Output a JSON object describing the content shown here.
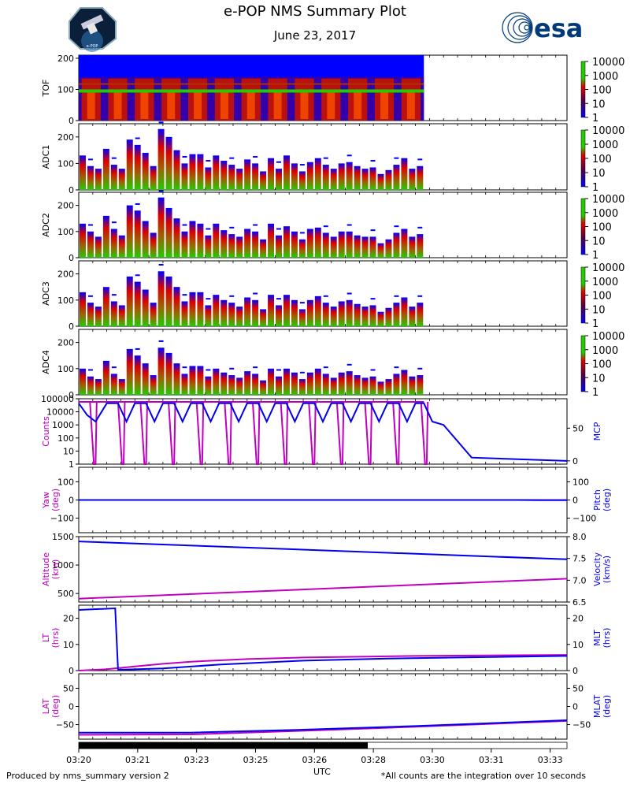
{
  "header": {
    "title": "e-POP NMS Summary Plot",
    "date": "June 23, 2017",
    "esa_logo_text": "esa",
    "mission_badge_text": "e-POP"
  },
  "footer": {
    "left": "Produced by nms_summary version 2",
    "right": "*All counts are the integration over 10 seconds",
    "xlabel": "UTC"
  },
  "colors": {
    "magenta": "#c000c0",
    "blue": "#0000ee",
    "spec_low": "#0000ff",
    "spec_mid": "#dd0000",
    "spec_high": "#22cc00"
  },
  "chart_data": [
    {
      "type": "heatmap",
      "name": "TOF",
      "ylabel": "TOF",
      "ylim": [
        0,
        210
      ],
      "yticks": [
        0,
        100,
        200
      ],
      "colorbar": {
        "ticks": [
          "10000",
          "1000",
          "100",
          "10",
          "1"
        ]
      }
    },
    {
      "type": "heatmap",
      "name": "ADC1",
      "ylabel": "ADC1",
      "ylim": [
        0,
        250
      ],
      "yticks": [
        0,
        100,
        200
      ],
      "colorbar": {
        "ticks": [
          "10000",
          "1000",
          "100",
          "10",
          "1"
        ]
      },
      "bar_heights": [
        130,
        90,
        80,
        155,
        95,
        80,
        190,
        170,
        140,
        90,
        230,
        200,
        150,
        100,
        135,
        135,
        85,
        130,
        110,
        95,
        80,
        115,
        100,
        70,
        120,
        80,
        130,
        100,
        70,
        105,
        120,
        95,
        80,
        100,
        105,
        90,
        80,
        85,
        60,
        75,
        95,
        120,
        80,
        90
      ]
    },
    {
      "type": "heatmap",
      "name": "ADC2",
      "ylabel": "ADC2",
      "ylim": [
        0,
        250
      ],
      "yticks": [
        0,
        100,
        200
      ],
      "colorbar": {
        "ticks": [
          "10000",
          "1000",
          "100",
          "10",
          "1"
        ]
      },
      "bar_heights": [
        130,
        100,
        80,
        160,
        110,
        85,
        200,
        180,
        140,
        95,
        230,
        190,
        150,
        100,
        140,
        130,
        85,
        130,
        105,
        90,
        80,
        110,
        100,
        70,
        130,
        85,
        120,
        100,
        70,
        110,
        115,
        95,
        80,
        100,
        100,
        85,
        80,
        80,
        55,
        70,
        95,
        110,
        80,
        90
      ]
    },
    {
      "type": "heatmap",
      "name": "ADC3",
      "ylabel": "ADC3",
      "ylim": [
        0,
        250
      ],
      "yticks": [
        0,
        100,
        200
      ],
      "colorbar": {
        "ticks": [
          "10000",
          "1000",
          "100",
          "10",
          "1"
        ]
      },
      "bar_heights": [
        130,
        90,
        75,
        150,
        95,
        80,
        190,
        170,
        140,
        90,
        210,
        190,
        150,
        95,
        130,
        130,
        80,
        120,
        100,
        90,
        75,
        110,
        100,
        65,
        120,
        80,
        120,
        100,
        65,
        100,
        115,
        90,
        75,
        95,
        100,
        85,
        75,
        80,
        55,
        70,
        90,
        110,
        75,
        90
      ]
    },
    {
      "type": "heatmap",
      "name": "ADC4",
      "ylabel": "ADC4",
      "ylim": [
        0,
        250
      ],
      "yticks": [
        0,
        100,
        200
      ],
      "colorbar": {
        "ticks": [
          "10000",
          "1000",
          "100",
          "10",
          "1"
        ]
      },
      "bar_heights": [
        100,
        70,
        60,
        130,
        80,
        60,
        175,
        150,
        120,
        75,
        180,
        160,
        120,
        80,
        110,
        110,
        70,
        100,
        85,
        75,
        65,
        90,
        80,
        55,
        100,
        70,
        100,
        85,
        60,
        85,
        100,
        80,
        65,
        85,
        90,
        75,
        65,
        70,
        50,
        60,
        80,
        95,
        70,
        75
      ]
    },
    {
      "type": "line",
      "name": "Counts/MCP",
      "ylabel_left": "Counts",
      "ylabel_right": "MCP",
      "yticks_left": [
        "100000",
        "10000",
        "1000",
        "100",
        "10",
        "1"
      ],
      "yticks_right": [
        "50",
        "0"
      ],
      "ylim_left_log10": [
        0,
        5
      ],
      "ylim_right": [
        -5,
        95
      ],
      "counts_peak_minutes": [
        0.0,
        0.5,
        0.9,
        1.4,
        1.9,
        2.4,
        2.9,
        3.4,
        3.9,
        4.4,
        4.9,
        5.4,
        5.9
      ],
      "mcp": [
        [
          0.0,
          88
        ],
        [
          0.15,
          70
        ],
        [
          0.3,
          60
        ],
        [
          0.5,
          88
        ],
        [
          0.7,
          88
        ],
        [
          0.85,
          60
        ],
        [
          1.0,
          88
        ],
        [
          1.2,
          88
        ],
        [
          1.35,
          60
        ],
        [
          1.5,
          88
        ],
        [
          1.7,
          88
        ],
        [
          1.85,
          60
        ],
        [
          2.0,
          88
        ],
        [
          2.2,
          88
        ],
        [
          2.35,
          60
        ],
        [
          2.5,
          88
        ],
        [
          2.7,
          88
        ],
        [
          2.85,
          60
        ],
        [
          3.0,
          88
        ],
        [
          3.2,
          88
        ],
        [
          3.35,
          60
        ],
        [
          3.5,
          88
        ],
        [
          3.7,
          88
        ],
        [
          3.85,
          60
        ],
        [
          4.0,
          88
        ],
        [
          4.2,
          88
        ],
        [
          4.35,
          60
        ],
        [
          4.5,
          88
        ],
        [
          4.7,
          88
        ],
        [
          4.85,
          60
        ],
        [
          5.0,
          88
        ],
        [
          5.2,
          88
        ],
        [
          5.35,
          60
        ],
        [
          5.5,
          88
        ],
        [
          5.7,
          88
        ],
        [
          5.85,
          60
        ],
        [
          6.0,
          88
        ],
        [
          6.15,
          88
        ],
        [
          6.3,
          60
        ],
        [
          6.5,
          55
        ],
        [
          7.0,
          5
        ],
        [
          8.7,
          0
        ]
      ]
    },
    {
      "type": "line",
      "name": "Yaw/Pitch",
      "ylabel_left": "Yaw\n(deg)",
      "ylabel_right": "Pitch\n(deg)",
      "yticks_left": [
        "100",
        "0",
        "−100"
      ],
      "yticks_right": [
        "100",
        "0",
        "−100"
      ],
      "ylim": [
        -180,
        180
      ],
      "yaw": [
        [
          0,
          0
        ],
        [
          8.7,
          0
        ]
      ],
      "pitch": [
        [
          0,
          0
        ],
        [
          7.8,
          0
        ],
        [
          8.2,
          -1
        ],
        [
          8.7,
          -1
        ]
      ]
    },
    {
      "type": "line",
      "name": "Altitude/Velocity",
      "ylabel_left": "Altitude\n(km)",
      "ylabel_right": "Velocity\n(km/s)",
      "yticks_left": [
        "1500",
        "1000",
        "500"
      ],
      "yticks_right": [
        "8.0",
        "7.5",
        "7.0",
        "6.5"
      ],
      "ylim_left": [
        350,
        1500
      ],
      "ylim_right": [
        6.5,
        8.0
      ],
      "altitude": [
        [
          0,
          410
        ],
        [
          8.7,
          760
        ]
      ],
      "velocity": [
        [
          0,
          7.89
        ],
        [
          8.7,
          7.48
        ]
      ]
    },
    {
      "type": "line",
      "name": "LT/MLT",
      "ylabel_left": "LT\n(hrs)",
      "ylabel_right": "MLT\n(hrs)",
      "yticks_left": [
        "20",
        "10",
        "0"
      ],
      "yticks_right": [
        "20",
        "10",
        "0"
      ],
      "ylim": [
        0,
        25
      ],
      "lt": [
        [
          0,
          0
        ],
        [
          0.5,
          0.5
        ],
        [
          1.0,
          1.6
        ],
        [
          1.5,
          2.6
        ],
        [
          2.0,
          3.4
        ],
        [
          3.0,
          4.4
        ],
        [
          4.0,
          5.0
        ],
        [
          5.0,
          5.3
        ],
        [
          6.0,
          5.6
        ],
        [
          8.7,
          6.0
        ]
      ],
      "mlt": [
        [
          0,
          23.2
        ],
        [
          0.65,
          23.8
        ],
        [
          0.7,
          0.3
        ],
        [
          1.5,
          0.8
        ],
        [
          2.5,
          2.3
        ],
        [
          4.0,
          3.8
        ],
        [
          5.5,
          4.6
        ],
        [
          7.0,
          5.1
        ],
        [
          8.7,
          5.6
        ]
      ]
    },
    {
      "type": "line",
      "name": "LAT/MLAT",
      "ylabel_left": "LAT\n(deg)",
      "ylabel_right": "MLAT\n(deg)",
      "yticks_left": [
        "50",
        "0",
        "−50"
      ],
      "yticks_right": [
        "50",
        "0",
        "−50"
      ],
      "ylim": [
        -90,
        90
      ],
      "lat": [
        [
          0,
          -78
        ],
        [
          2.0,
          -77
        ],
        [
          4.0,
          -67
        ],
        [
          6.0,
          -56
        ],
        [
          8.7,
          -40
        ]
      ],
      "mlat": [
        [
          0,
          -72
        ],
        [
          2.0,
          -72
        ],
        [
          4.0,
          -64
        ],
        [
          6.0,
          -54
        ],
        [
          8.7,
          -38
        ]
      ]
    }
  ],
  "time_axis": {
    "xlim_minutes": [
      0,
      8.7
    ],
    "data_end_minutes": 6.15,
    "coverage_bar_end_minutes": 5.15,
    "tick_labels": [
      "03:20",
      "03:21",
      "03:23",
      "03:25",
      "03:26",
      "03:28",
      "03:30",
      "03:31",
      "03:33"
    ]
  }
}
